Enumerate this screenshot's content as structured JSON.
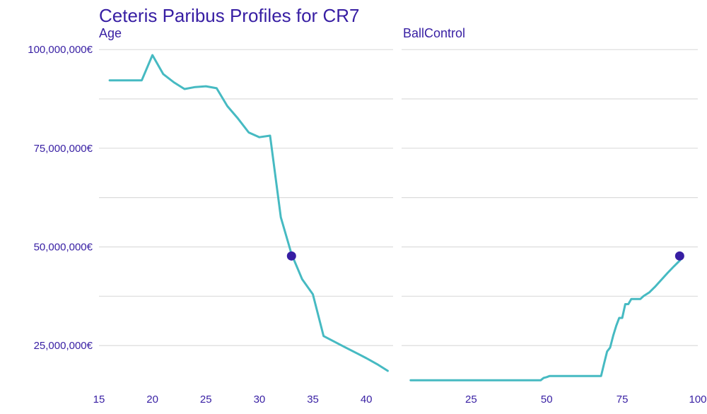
{
  "chart_data": {
    "type": "line",
    "title": "Ceteris Paribus Profiles for CR7",
    "ylim": [
      15000000,
      102000000
    ],
    "y_ticks": [
      25000000,
      50000000,
      75000000,
      100000000
    ],
    "y_tick_labels": [
      "25,000,000€",
      "50,000,000€",
      "75,000,000€",
      "100,000,000€"
    ],
    "y_minor_ticks": [
      37500000,
      62500000,
      87500000
    ],
    "grid": true,
    "legend": "none",
    "colors": {
      "line": "#46bac2",
      "point": "#371ea3",
      "text": "#371ea3",
      "grid": "#dcdcdc"
    },
    "panels": [
      {
        "variable": "Age",
        "xlim": [
          15,
          42.5
        ],
        "x_ticks": [
          15,
          20,
          25,
          30,
          35,
          40
        ],
        "x_tick_labels": [
          "15",
          "20",
          "25",
          "30",
          "35",
          "40"
        ],
        "x": [
          16,
          17,
          18,
          19,
          20,
          21,
          22,
          23,
          24,
          25,
          26,
          27,
          28,
          29,
          30,
          31,
          32,
          33,
          34,
          35,
          36,
          37,
          38,
          39,
          40,
          41,
          42
        ],
        "y": [
          92200000,
          92200000,
          92200000,
          92200000,
          98600000,
          93800000,
          91700000,
          90000000,
          90500000,
          90700000,
          90200000,
          85700000,
          82500000,
          79000000,
          77800000,
          78200000,
          57500000,
          48200000,
          41800000,
          38000000,
          27400000,
          26000000,
          24600000,
          23200000,
          21800000,
          20300000,
          18600000
        ],
        "observation": {
          "x": 33,
          "y": 47700000
        }
      },
      {
        "variable": "BallControl",
        "xlim": [
          2,
          100
        ],
        "x_ticks": [
          25,
          50,
          75,
          100
        ],
        "x_tick_labels": [
          "25",
          "50",
          "75",
          "100"
        ],
        "x": [
          5,
          10,
          20,
          30,
          40,
          47,
          48,
          49,
          50,
          51,
          52,
          55,
          60,
          65,
          68,
          69,
          70,
          71,
          72,
          73,
          74,
          75,
          76,
          77,
          78,
          79,
          80,
          81,
          82,
          84,
          86,
          88,
          90,
          92,
          94,
          95
        ],
        "y": [
          16200000,
          16200000,
          16200000,
          16200000,
          16200000,
          16200000,
          16200000,
          16800000,
          17000000,
          17300000,
          17300000,
          17300000,
          17300000,
          17300000,
          17300000,
          20500000,
          23500000,
          24500000,
          27500000,
          30000000,
          32000000,
          32000000,
          35500000,
          35500000,
          36800000,
          36800000,
          36800000,
          36800000,
          37500000,
          38500000,
          40000000,
          41700000,
          43400000,
          45000000,
          46500000,
          47500000
        ],
        "observation": {
          "x": 94,
          "y": 47700000
        }
      }
    ]
  }
}
